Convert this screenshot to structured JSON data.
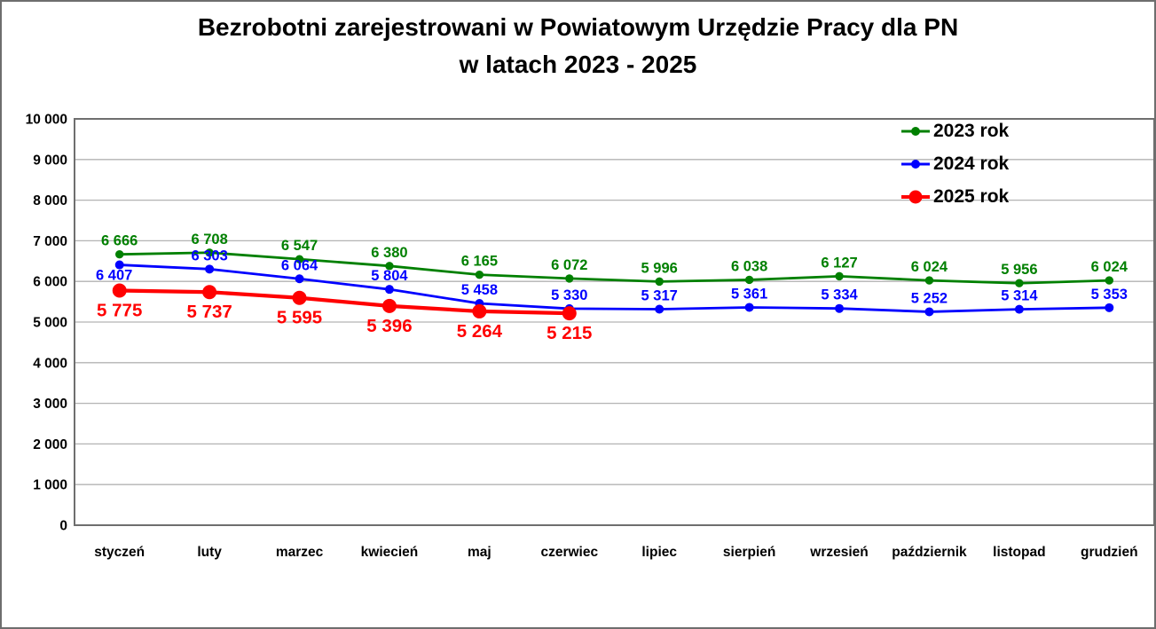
{
  "title": {
    "line1": "Bezrobotni zarejestrowani w Powiatowym Urzędzie Pracy dla PN",
    "line2": "w latach 2023 - 2025"
  },
  "chart_data": {
    "type": "line",
    "title": "Bezrobotni zarejestrowani w Powiatowym Urzędzie Pracy dla PN w latach 2023 - 2025",
    "categories": [
      "styczeń",
      "luty",
      "marzec",
      "kwiecień",
      "maj",
      "czerwiec",
      "lipiec",
      "sierpień",
      "wrzesień",
      "październik",
      "listopad",
      "grudzień"
    ],
    "series": [
      {
        "name": "2023 rok",
        "color": "#008000",
        "values": [
          6666,
          6708,
          6547,
          6380,
          6165,
          6072,
          5996,
          6038,
          6127,
          6024,
          5956,
          6024
        ]
      },
      {
        "name": "2024 rok",
        "color": "#0000ff",
        "values": [
          6407,
          6303,
          6064,
          5804,
          5458,
          5330,
          5317,
          5361,
          5334,
          5252,
          5314,
          5353
        ]
      },
      {
        "name": "2025 rok",
        "color": "#ff0000",
        "values": [
          5775,
          5737,
          5595,
          5396,
          5264,
          5215
        ]
      }
    ],
    "ylim": [
      0,
      10000
    ],
    "ytick_step": 1000,
    "ytick_labels": [
      "0",
      "1 000",
      "2 000",
      "3 000",
      "4 000",
      "5 000",
      "6 000",
      "7 000",
      "8 000",
      "9 000",
      "10 000"
    ],
    "xlabel": "",
    "ylabel": "",
    "grid": "horizontal",
    "legend_position": "top-right",
    "number_format": "space-thousands",
    "data_labels_visible": true
  }
}
